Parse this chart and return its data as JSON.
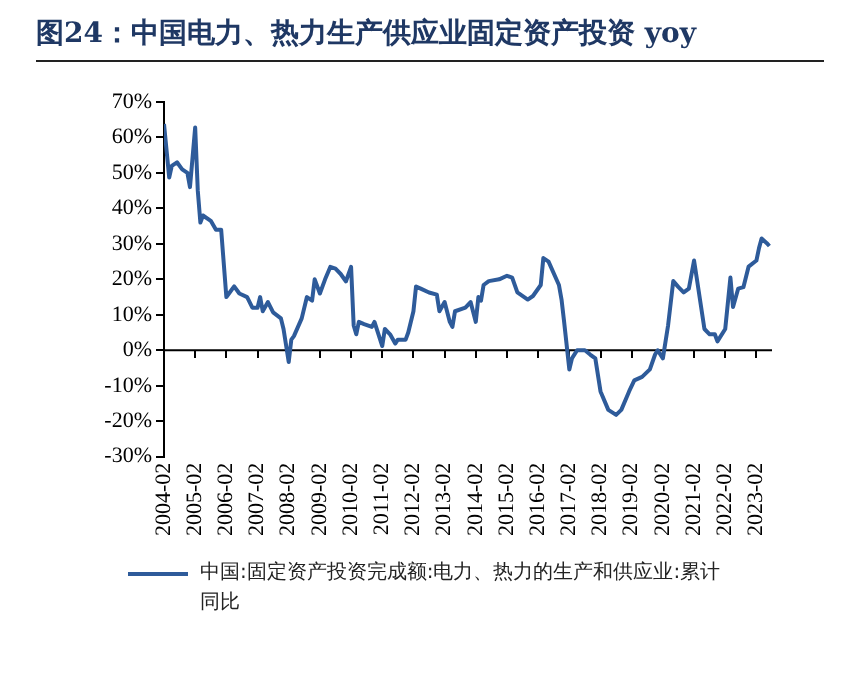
{
  "chart_data": {
    "type": "line",
    "title": "图24：中国电力、热力生产供应业固定资产投资 yoy",
    "x": [
      "2004-02",
      "2004-04",
      "2004-05",
      "2004-07",
      "2004-09",
      "2004-11",
      "2004-12",
      "2005-02",
      "2005-03",
      "2005-04",
      "2005-05",
      "2005-08",
      "2005-10",
      "2005-12",
      "2006-02",
      "2006-03",
      "2006-05",
      "2006-07",
      "2006-10",
      "2006-12",
      "2007-02",
      "2007-03",
      "2007-04",
      "2007-06",
      "2007-08",
      "2007-11",
      "2007-12",
      "2008-02",
      "2008-03",
      "2008-04",
      "2008-07",
      "2008-09",
      "2008-11",
      "2008-12",
      "2009-02",
      "2009-04",
      "2009-06",
      "2009-08",
      "2009-10",
      "2009-12",
      "2010-02",
      "2010-03",
      "2010-04",
      "2010-05",
      "2010-07",
      "2010-10",
      "2010-11",
      "2011-02",
      "2011-03",
      "2011-05",
      "2011-07",
      "2011-08",
      "2011-11",
      "2011-12",
      "2012-02",
      "2012-03",
      "2012-05",
      "2012-08",
      "2012-11",
      "2012-12",
      "2013-02",
      "2013-04",
      "2013-05",
      "2013-06",
      "2013-10",
      "2013-12",
      "2014-02",
      "2014-03",
      "2014-04",
      "2014-05",
      "2014-07",
      "2014-11",
      "2015-02",
      "2015-04",
      "2015-06",
      "2015-10",
      "2015-12",
      "2016-03",
      "2016-04",
      "2016-06",
      "2016-10",
      "2016-11",
      "2016-12",
      "2017-02",
      "2017-03",
      "2017-05",
      "2017-08",
      "2017-10",
      "2017-12",
      "2018-02",
      "2018-05",
      "2018-08",
      "2018-10",
      "2019-01",
      "2019-03",
      "2019-06",
      "2019-09",
      "2019-11",
      "2019-12",
      "2020-02",
      "2020-04",
      "2020-06",
      "2020-08",
      "2020-10",
      "2020-12",
      "2021-02",
      "2021-03",
      "2021-06",
      "2021-08",
      "2021-10",
      "2021-11",
      "2022-02",
      "2022-04",
      "2022-05",
      "2022-07",
      "2022-09",
      "2022-11",
      "2023-02",
      "2023-03",
      "2023-04",
      "2023-06",
      "2023-07"
    ],
    "series": [
      {
        "name": "中国:固定资产投资完成额:电力、热力的生产和供应业:累计同比",
        "color": "#2e5b9a",
        "values": [
          63.8,
          48.7,
          52,
          53,
          51,
          50,
          46,
          62.8,
          45,
          36,
          38,
          36.5,
          34,
          34,
          15,
          16,
          18,
          16,
          15,
          12,
          12,
          15,
          11,
          13.6,
          10.7,
          9,
          6,
          -3.3,
          3,
          4,
          9,
          15,
          14,
          20,
          16,
          20,
          23.5,
          23,
          21.5,
          19.4,
          23.5,
          7,
          4.5,
          8,
          7.4,
          6.6,
          8,
          1.2,
          6,
          4.5,
          1.9,
          3,
          3,
          5,
          11,
          18,
          17.3,
          16.3,
          15.7,
          11,
          13.6,
          8,
          6.6,
          11,
          12,
          13.6,
          8,
          15,
          14,
          18.4,
          19.5,
          20,
          21,
          20.5,
          16.3,
          14.3,
          15.3,
          18.4,
          26,
          25,
          18.4,
          14.3,
          8,
          -5.4,
          -2.3,
          0,
          0,
          -1.2,
          -2.3,
          -11.6,
          -16.8,
          -18.2,
          -16.8,
          -11.6,
          -8.5,
          -7.5,
          -5.4,
          -1.2,
          0,
          -2.3,
          7,
          19.5,
          17.8,
          16.3,
          17.4,
          25.3,
          20.5,
          6,
          4.5,
          4.5,
          2.5,
          6,
          20.5,
          12.2,
          17.4,
          17.8,
          23.6,
          25.3,
          28.8,
          31.5,
          30.2,
          29.4
        ]
      }
    ],
    "xlim": [
      "2004-02",
      "2023-08"
    ],
    "xticks": [
      "2004-02",
      "2005-02",
      "2006-02",
      "2007-02",
      "2008-02",
      "2009-02",
      "2010-02",
      "2011-02",
      "2012-02",
      "2013-02",
      "2014-02",
      "2015-02",
      "2016-02",
      "2017-02",
      "2018-02",
      "2019-02",
      "2020-02",
      "2021-02",
      "2022-02",
      "2023-02"
    ],
    "ylim": [
      -30,
      70
    ],
    "yticks": [
      {
        "value": -30,
        "label": "-30%"
      },
      {
        "value": -20,
        "label": "-20%"
      },
      {
        "value": -10,
        "label": "-10%"
      },
      {
        "value": 0,
        "label": "0%"
      },
      {
        "value": 10,
        "label": "10%"
      },
      {
        "value": 20,
        "label": "20%"
      },
      {
        "value": 30,
        "label": "30%"
      },
      {
        "value": 40,
        "label": "40%"
      },
      {
        "value": 50,
        "label": "50%"
      },
      {
        "value": 60,
        "label": "60%"
      },
      {
        "value": 70,
        "label": "70%"
      }
    ],
    "ref_lines": [
      {
        "axis": "y",
        "value": 0,
        "color": "#000000",
        "line_style": "solid"
      }
    ],
    "grid": false,
    "legend": "bottom",
    "marker": "none",
    "line_style": "solid"
  }
}
